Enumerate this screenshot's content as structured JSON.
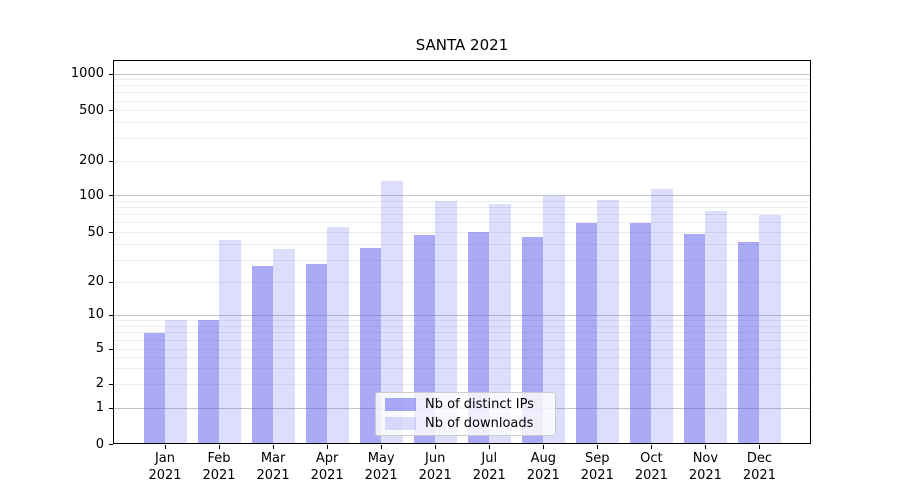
{
  "title": "SANTA 2021",
  "chart_data": {
    "type": "bar",
    "title": "SANTA 2021",
    "categories": [
      "Jan 2021",
      "Feb 2021",
      "Mar 2021",
      "Apr 2021",
      "May 2021",
      "Jun 2021",
      "Jul 2021",
      "Aug 2021",
      "Sep 2021",
      "Oct 2021",
      "Nov 2021",
      "Dec 2021"
    ],
    "x_tick_months": [
      "Jan",
      "Feb",
      "Mar",
      "Apr",
      "May",
      "Jun",
      "Jul",
      "Aug",
      "Sep",
      "Oct",
      "Nov",
      "Dec"
    ],
    "x_tick_year": "2021",
    "series": [
      {
        "name": "Nb of distinct IPs",
        "color": "#aaaaf6",
        "color_rgba": "rgba(85,85,238,0.5)",
        "values": [
          7,
          9,
          27,
          28,
          38,
          48,
          51,
          46,
          60,
          60,
          49,
          42
        ]
      },
      {
        "name": "Nb of downloads",
        "color": "#ddddfc",
        "color_rgba": "rgba(85,85,238,0.2)",
        "values": [
          9,
          44,
          37,
          56,
          135,
          90,
          85,
          100,
          93,
          114,
          75,
          70
        ]
      }
    ],
    "yscale": "symlog",
    "yticks": [
      0,
      1,
      2,
      5,
      10,
      20,
      50,
      100,
      200,
      500,
      1000
    ],
    "ytick_labels": [
      "0",
      "1",
      "2",
      "5",
      "10",
      "20",
      "50",
      "100",
      "200",
      "500",
      "1000"
    ],
    "major_grid_values": [
      1,
      10,
      100,
      1000
    ],
    "ylim": [
      0,
      1290
    ],
    "xlabel": "",
    "ylabel": "",
    "grid": "horizontal major+minor",
    "legend_position": "lower center",
    "legend_entries": [
      "Nb of distinct IPs",
      "Nb of downloads"
    ]
  }
}
